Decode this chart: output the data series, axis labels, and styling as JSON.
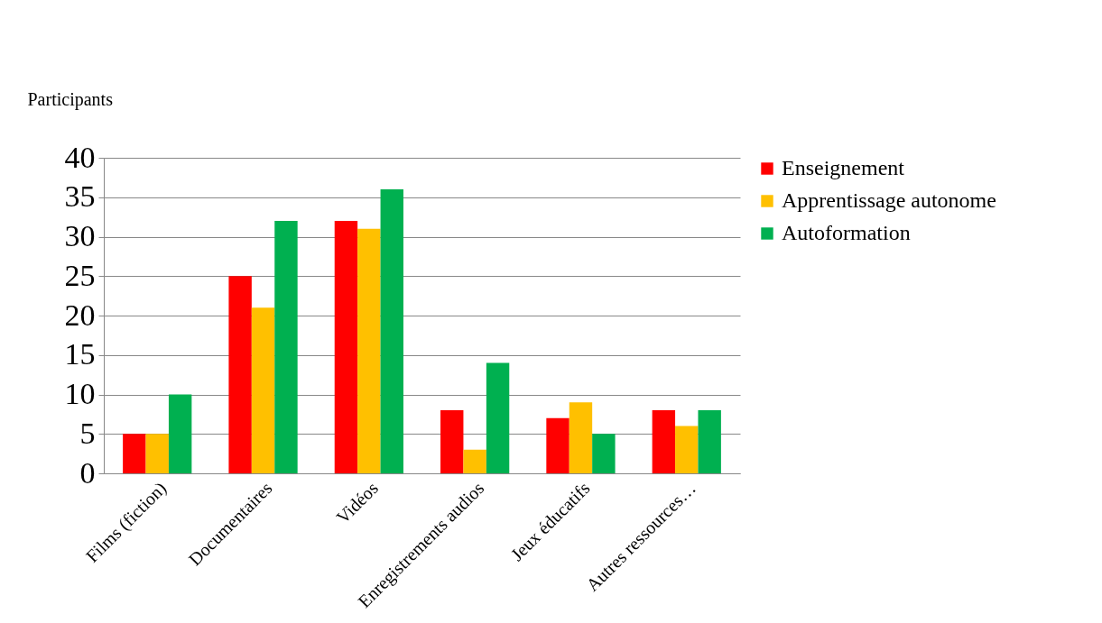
{
  "chart_data": {
    "type": "bar",
    "ylabel": "Participants",
    "categories": [
      "Films (fiction)",
      "Documentaires",
      "Vidéos",
      "Enregistrements audios",
      "Jeux éducatifs",
      "Autres ressources…"
    ],
    "series": [
      {
        "name": "Enseignement",
        "color": "#ff0000",
        "values": [
          5,
          25,
          32,
          8,
          7,
          8
        ]
      },
      {
        "name": "Apprentissage autonome",
        "color": "#ffc000",
        "values": [
          5,
          21,
          31,
          3,
          9,
          6
        ]
      },
      {
        "name": "Autoformation",
        "color": "#00b050",
        "values": [
          10,
          32,
          36,
          14,
          5,
          8
        ]
      }
    ],
    "ylim": [
      0,
      40
    ],
    "yticks": [
      0,
      5,
      10,
      15,
      20,
      25,
      30,
      35,
      40
    ],
    "grid": "y",
    "legend": "right"
  }
}
